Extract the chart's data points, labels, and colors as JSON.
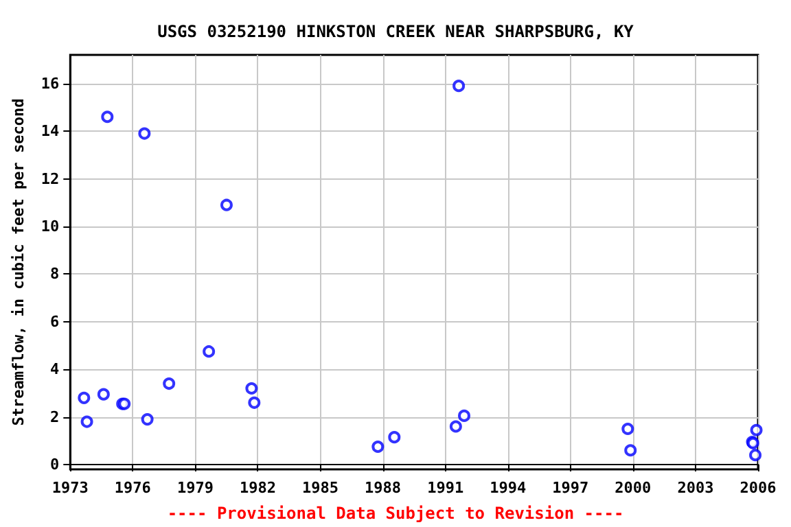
{
  "chart_data": {
    "type": "scatter",
    "title": "USGS 03252190 HINKSTON CREEK NEAR SHARPSBURG, KY",
    "ylabel": "Streamflow, in cubic feet per second",
    "annotations": [
      "---- Provisional Data Subject to Revision ----"
    ],
    "x": [
      1973.66,
      1973.8,
      1974.6,
      1974.78,
      1975.5,
      1975.6,
      1976.56,
      1976.7,
      1977.74,
      1979.65,
      1980.5,
      1981.7,
      1981.83,
      1987.76,
      1988.55,
      1991.5,
      1991.64,
      1991.9,
      1999.75,
      1999.88,
      2005.72,
      2005.76,
      2005.87,
      2005.92
    ],
    "values": [
      2.8,
      1.8,
      2.95,
      14.6,
      2.55,
      2.55,
      13.9,
      1.9,
      3.4,
      4.75,
      10.9,
      3.2,
      2.6,
      0.75,
      1.15,
      1.6,
      15.9,
      2.05,
      1.5,
      0.6,
      0.95,
      0.9,
      0.4,
      1.45
    ],
    "color": "#0000ff",
    "marker": "circle",
    "grid": true,
    "xlim": [
      1973,
      2006
    ],
    "xticks": [
      1973,
      1976,
      1979,
      1982,
      1985,
      1988,
      1991,
      1994,
      1997,
      2000,
      2003,
      2006
    ],
    "ylim": [
      -0.2,
      17.2
    ],
    "yticks": [
      0,
      2,
      4,
      6,
      8,
      10,
      12,
      14,
      16
    ]
  }
}
